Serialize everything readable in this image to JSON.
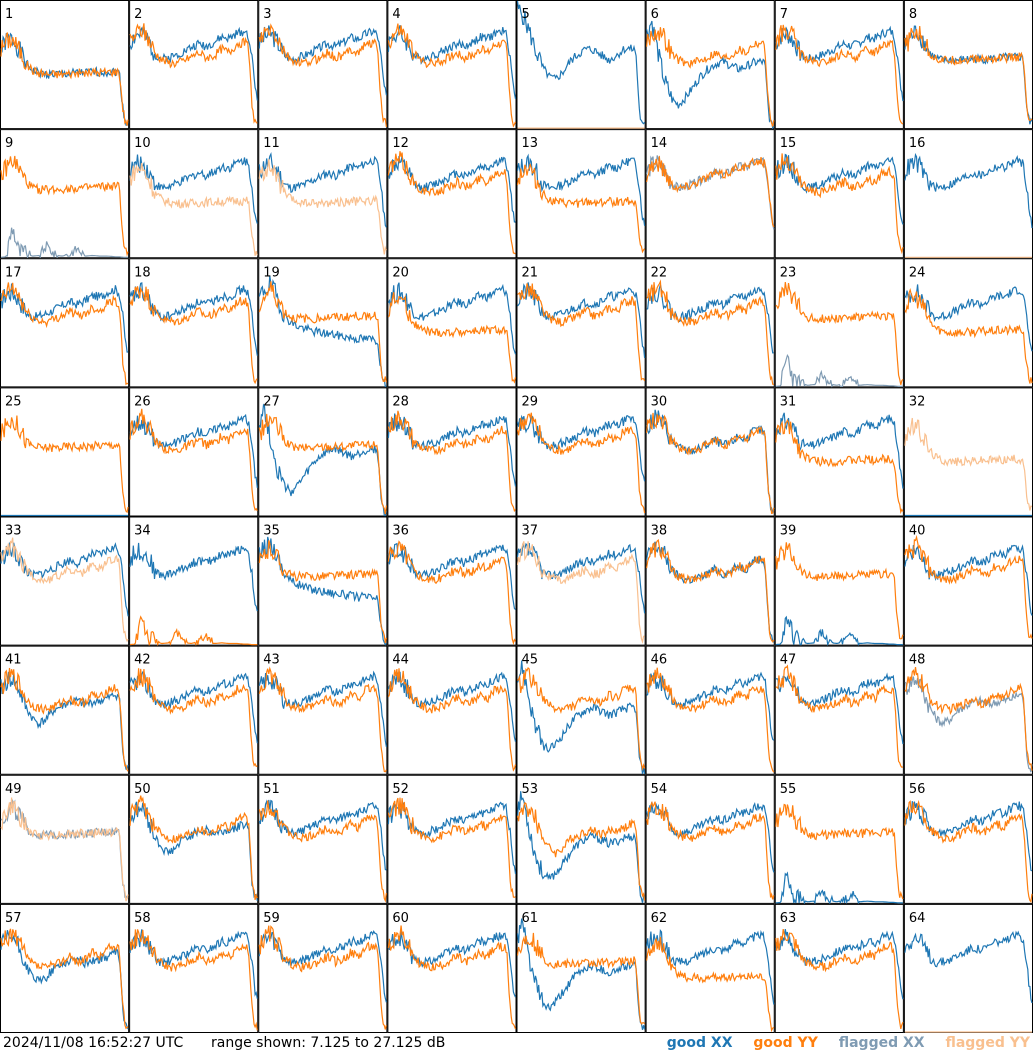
{
  "chart_data": {
    "type": "line",
    "layout": "8x8 small multiples",
    "panel_labels": [
      "1",
      "2",
      "3",
      "4",
      "5",
      "6",
      "7",
      "8",
      "9",
      "10",
      "11",
      "12",
      "13",
      "14",
      "15",
      "16",
      "17",
      "18",
      "19",
      "20",
      "21",
      "22",
      "23",
      "24",
      "25",
      "26",
      "27",
      "28",
      "29",
      "30",
      "31",
      "32",
      "33",
      "34",
      "35",
      "36",
      "37",
      "38",
      "39",
      "40",
      "41",
      "42",
      "43",
      "44",
      "45",
      "46",
      "47",
      "48",
      "49",
      "50",
      "51",
      "52",
      "53",
      "54",
      "55",
      "56",
      "57",
      "58",
      "59",
      "60",
      "61",
      "62",
      "63",
      "64"
    ],
    "ylim": [
      7.125,
      27.125
    ],
    "range_text": "range shown: 7.125 to 27.125 dB",
    "timestamp": "2024/11/08 16:52:27 UTC",
    "legend": [
      {
        "label": "good XX",
        "color": "#1f77b4"
      },
      {
        "label": "good YY",
        "color": "#ff7f0e"
      },
      {
        "label": "flagged XX",
        "color": "#7f9bb3"
      },
      {
        "label": "flagged YY",
        "color": "#f9c08f"
      }
    ],
    "x_norm": [
      0,
      0.04,
      0.09,
      0.14,
      0.2,
      0.25,
      0.3,
      0.36,
      0.42,
      0.48,
      0.54,
      0.6,
      0.66,
      0.72,
      0.78,
      0.84,
      0.9,
      0.93,
      0.96,
      0.98,
      1.0
    ],
    "templates": {
      "standard": [
        20.5,
        21.8,
        22.6,
        21.3,
        18.8,
        17.9,
        17.4,
        17.3,
        17.7,
        18.3,
        19.0,
        18.2,
        18.5,
        19.6,
        19.0,
        20.4,
        20.6,
        20.0,
        10.5,
        8.0,
        8.0
      ],
      "rising": [
        20.5,
        21.6,
        22.0,
        20.8,
        18.6,
        18.0,
        18.2,
        18.6,
        19.2,
        19.8,
        20.4,
        20.0,
        20.6,
        21.4,
        21.2,
        22.0,
        22.4,
        21.8,
        18.0,
        14.0,
        12.0
      ],
      "dip": [
        20.5,
        21.5,
        22.2,
        20.4,
        17.4,
        15.8,
        15.0,
        15.8,
        17.2,
        17.8,
        18.4,
        18.6,
        18.0,
        18.4,
        18.6,
        19.0,
        19.6,
        19.4,
        10.0,
        8.0,
        8.0
      ],
      "falling": [
        21.0,
        22.4,
        23.2,
        21.2,
        18.2,
        17.2,
        16.6,
        16.2,
        15.8,
        15.6,
        15.4,
        15.2,
        15.0,
        14.8,
        14.6,
        14.6,
        14.5,
        14.3,
        9.5,
        7.5,
        7.5
      ],
      "flat": [
        19.8,
        21.2,
        22.4,
        21.0,
        18.8,
        18.0,
        17.8,
        17.8,
        17.8,
        17.9,
        18.0,
        18.0,
        18.0,
        18.1,
        18.2,
        18.2,
        18.3,
        18.3,
        10.0,
        8.0,
        8.0
      ],
      "low": [
        19.5,
        20.8,
        21.2,
        19.6,
        17.2,
        16.2,
        15.8,
        15.6,
        15.6,
        15.6,
        15.7,
        15.8,
        15.8,
        15.9,
        15.9,
        16.0,
        16.0,
        16.0,
        10.0,
        8.0,
        8.0
      ],
      "wave": [
        26.0,
        25.0,
        22.5,
        19.5,
        16.6,
        15.2,
        14.8,
        16.0,
        17.8,
        18.8,
        19.6,
        19.4,
        18.6,
        17.8,
        18.6,
        19.6,
        19.6,
        19.4,
        9.5,
        7.5,
        7.5
      ],
      "deep": [
        22.0,
        24.0,
        19.0,
        14.6,
        11.6,
        10.8,
        11.8,
        13.4,
        15.2,
        16.4,
        17.2,
        17.6,
        17.0,
        16.4,
        16.8,
        17.4,
        17.6,
        17.4,
        9.5,
        7.5,
        7.5
      ],
      "spikes": [
        7.125,
        7.2,
        12.0,
        8.0,
        7.6,
        7.3,
        7.4,
        9.0,
        7.5,
        7.3,
        7.6,
        8.5,
        7.3,
        7.4,
        7.3,
        7.3,
        7.2,
        7.2,
        7.125,
        7.125,
        7.125
      ],
      "zero": [
        7.125,
        7.125,
        7.125,
        7.125,
        7.125,
        7.125,
        7.125,
        7.125,
        7.125,
        7.125,
        7.125,
        7.125,
        7.125,
        7.125,
        7.125,
        7.125,
        7.125,
        7.125,
        7.125,
        7.125,
        7.125
      ]
    },
    "series": [
      {
        "name": "1",
        "xx": "low",
        "yy": "low",
        "xx_flag": false,
        "yy_flag": false
      },
      {
        "name": "2",
        "xx": "rising",
        "yy": "standard",
        "xx_flag": false,
        "yy_flag": false
      },
      {
        "name": "3",
        "xx": "rising",
        "yy": "standard",
        "xx_flag": false,
        "yy_flag": false
      },
      {
        "name": "4",
        "xx": "rising",
        "yy": "standard",
        "xx_flag": false,
        "yy_flag": false
      },
      {
        "name": "5",
        "xx": "wave",
        "yy": "zero",
        "xx_flag": false,
        "yy_flag": true
      },
      {
        "name": "6",
        "xx": "deep",
        "yy": "standard",
        "xx_flag": false,
        "yy_flag": false
      },
      {
        "name": "7",
        "xx": "rising",
        "yy": "standard",
        "xx_flag": false,
        "yy_flag": false
      },
      {
        "name": "8",
        "xx": "flat",
        "yy": "flat",
        "xx_flag": false,
        "yy_flag": false
      },
      {
        "name": "9",
        "xx": "spikes",
        "yy": "flat",
        "xx_flag": true,
        "yy_flag": false
      },
      {
        "name": "10",
        "xx": "rising",
        "yy": "low",
        "xx_flag": false,
        "yy_flag": true
      },
      {
        "name": "11",
        "xx": "rising",
        "yy": "low",
        "xx_flag": false,
        "yy_flag": true
      },
      {
        "name": "12",
        "xx": "rising",
        "yy": "standard",
        "xx_flag": false,
        "yy_flag": false
      },
      {
        "name": "13",
        "xx": "rising",
        "yy": "low",
        "xx_flag": false,
        "yy_flag": false
      },
      {
        "name": "14",
        "xx": "rising",
        "yy": "rising",
        "xx_flag": true,
        "yy_flag": false
      },
      {
        "name": "15",
        "xx": "rising",
        "yy": "standard",
        "xx_flag": false,
        "yy_flag": false
      },
      {
        "name": "16",
        "xx": "rising",
        "yy": "zero",
        "xx_flag": false,
        "yy_flag": true
      },
      {
        "name": "17",
        "xx": "rising",
        "yy": "standard",
        "xx_flag": false,
        "yy_flag": false
      },
      {
        "name": "18",
        "xx": "rising",
        "yy": "standard",
        "xx_flag": false,
        "yy_flag": false
      },
      {
        "name": "19",
        "xx": "falling",
        "yy": "flat",
        "xx_flag": false,
        "yy_flag": false
      },
      {
        "name": "20",
        "xx": "rising",
        "yy": "low",
        "xx_flag": false,
        "yy_flag": false
      },
      {
        "name": "21",
        "xx": "rising",
        "yy": "standard",
        "xx_flag": false,
        "yy_flag": false
      },
      {
        "name": "22",
        "xx": "rising",
        "yy": "standard",
        "xx_flag": false,
        "yy_flag": false
      },
      {
        "name": "23",
        "xx": "spikes",
        "yy": "flat",
        "xx_flag": true,
        "yy_flag": false
      },
      {
        "name": "24",
        "xx": "rising",
        "yy": "low",
        "xx_flag": false,
        "yy_flag": false
      },
      {
        "name": "25",
        "xx": "zero",
        "yy": "flat",
        "xx_flag": false,
        "yy_flag": false
      },
      {
        "name": "26",
        "xx": "rising",
        "yy": "standard",
        "xx_flag": false,
        "yy_flag": false
      },
      {
        "name": "27",
        "xx": "deep",
        "yy": "flat",
        "xx_flag": false,
        "yy_flag": false
      },
      {
        "name": "28",
        "xx": "rising",
        "yy": "standard",
        "xx_flag": false,
        "yy_flag": false
      },
      {
        "name": "29",
        "xx": "rising",
        "yy": "standard",
        "xx_flag": false,
        "yy_flag": false
      },
      {
        "name": "30",
        "xx": "standard",
        "yy": "standard",
        "xx_flag": false,
        "yy_flag": false
      },
      {
        "name": "31",
        "xx": "rising",
        "yy": "low",
        "xx_flag": false,
        "yy_flag": false
      },
      {
        "name": "32",
        "xx": "zero",
        "yy": "low",
        "xx_flag": false,
        "yy_flag": true
      },
      {
        "name": "33",
        "xx": "rising",
        "yy": "standard",
        "xx_flag": false,
        "yy_flag": true
      },
      {
        "name": "34",
        "xx": "rising",
        "yy": "spikes",
        "xx_flag": false,
        "yy_flag": false
      },
      {
        "name": "35",
        "xx": "falling",
        "yy": "flat",
        "xx_flag": false,
        "yy_flag": false
      },
      {
        "name": "36",
        "xx": "rising",
        "yy": "standard",
        "xx_flag": false,
        "yy_flag": false
      },
      {
        "name": "37",
        "xx": "rising",
        "yy": "standard",
        "xx_flag": false,
        "yy_flag": true
      },
      {
        "name": "38",
        "xx": "standard",
        "yy": "standard",
        "xx_flag": false,
        "yy_flag": false
      },
      {
        "name": "39",
        "xx": "spikes",
        "yy": "flat",
        "xx_flag": false,
        "yy_flag": false
      },
      {
        "name": "40",
        "xx": "rising",
        "yy": "standard",
        "xx_flag": false,
        "yy_flag": false
      },
      {
        "name": "41",
        "xx": "dip",
        "yy": "standard",
        "xx_flag": false,
        "yy_flag": false
      },
      {
        "name": "42",
        "xx": "rising",
        "yy": "standard",
        "xx_flag": false,
        "yy_flag": false
      },
      {
        "name": "43",
        "xx": "rising",
        "yy": "standard",
        "xx_flag": false,
        "yy_flag": false
      },
      {
        "name": "44",
        "xx": "rising",
        "yy": "standard",
        "xx_flag": false,
        "yy_flag": false
      },
      {
        "name": "45",
        "xx": "deep",
        "yy": "standard",
        "xx_flag": false,
        "yy_flag": false
      },
      {
        "name": "46",
        "xx": "rising",
        "yy": "standard",
        "xx_flag": false,
        "yy_flag": false
      },
      {
        "name": "47",
        "xx": "rising",
        "yy": "standard",
        "xx_flag": false,
        "yy_flag": false
      },
      {
        "name": "48",
        "xx": "dip",
        "yy": "standard",
        "xx_flag": true,
        "yy_flag": false
      },
      {
        "name": "49",
        "xx": "flat",
        "yy": "flat",
        "xx_flag": true,
        "yy_flag": true
      },
      {
        "name": "50",
        "xx": "dip",
        "yy": "standard",
        "xx_flag": false,
        "yy_flag": false
      },
      {
        "name": "51",
        "xx": "rising",
        "yy": "standard",
        "xx_flag": false,
        "yy_flag": false
      },
      {
        "name": "52",
        "xx": "rising",
        "yy": "standard",
        "xx_flag": false,
        "yy_flag": false
      },
      {
        "name": "53",
        "xx": "deep",
        "yy": "dip",
        "xx_flag": false,
        "yy_flag": false
      },
      {
        "name": "54",
        "xx": "rising",
        "yy": "standard",
        "xx_flag": false,
        "yy_flag": false
      },
      {
        "name": "55",
        "xx": "spikes",
        "yy": "flat",
        "xx_flag": false,
        "yy_flag": false
      },
      {
        "name": "56",
        "xx": "rising",
        "yy": "standard",
        "xx_flag": false,
        "yy_flag": false
      },
      {
        "name": "57",
        "xx": "dip",
        "yy": "standard",
        "xx_flag": false,
        "yy_flag": false
      },
      {
        "name": "58",
        "xx": "rising",
        "yy": "standard",
        "xx_flag": false,
        "yy_flag": false
      },
      {
        "name": "59",
        "xx": "rising",
        "yy": "standard",
        "xx_flag": false,
        "yy_flag": false
      },
      {
        "name": "60",
        "xx": "rising",
        "yy": "standard",
        "xx_flag": false,
        "yy_flag": false
      },
      {
        "name": "61",
        "xx": "deep",
        "yy": "flat",
        "xx_flag": false,
        "yy_flag": false
      },
      {
        "name": "62",
        "xx": "rising",
        "yy": "low",
        "xx_flag": false,
        "yy_flag": false
      },
      {
        "name": "63",
        "xx": "rising",
        "yy": "standard",
        "xx_flag": false,
        "yy_flag": false
      },
      {
        "name": "64",
        "xx": "rising",
        "yy": "zero",
        "xx_flag": false,
        "yy_flag": true
      }
    ]
  }
}
